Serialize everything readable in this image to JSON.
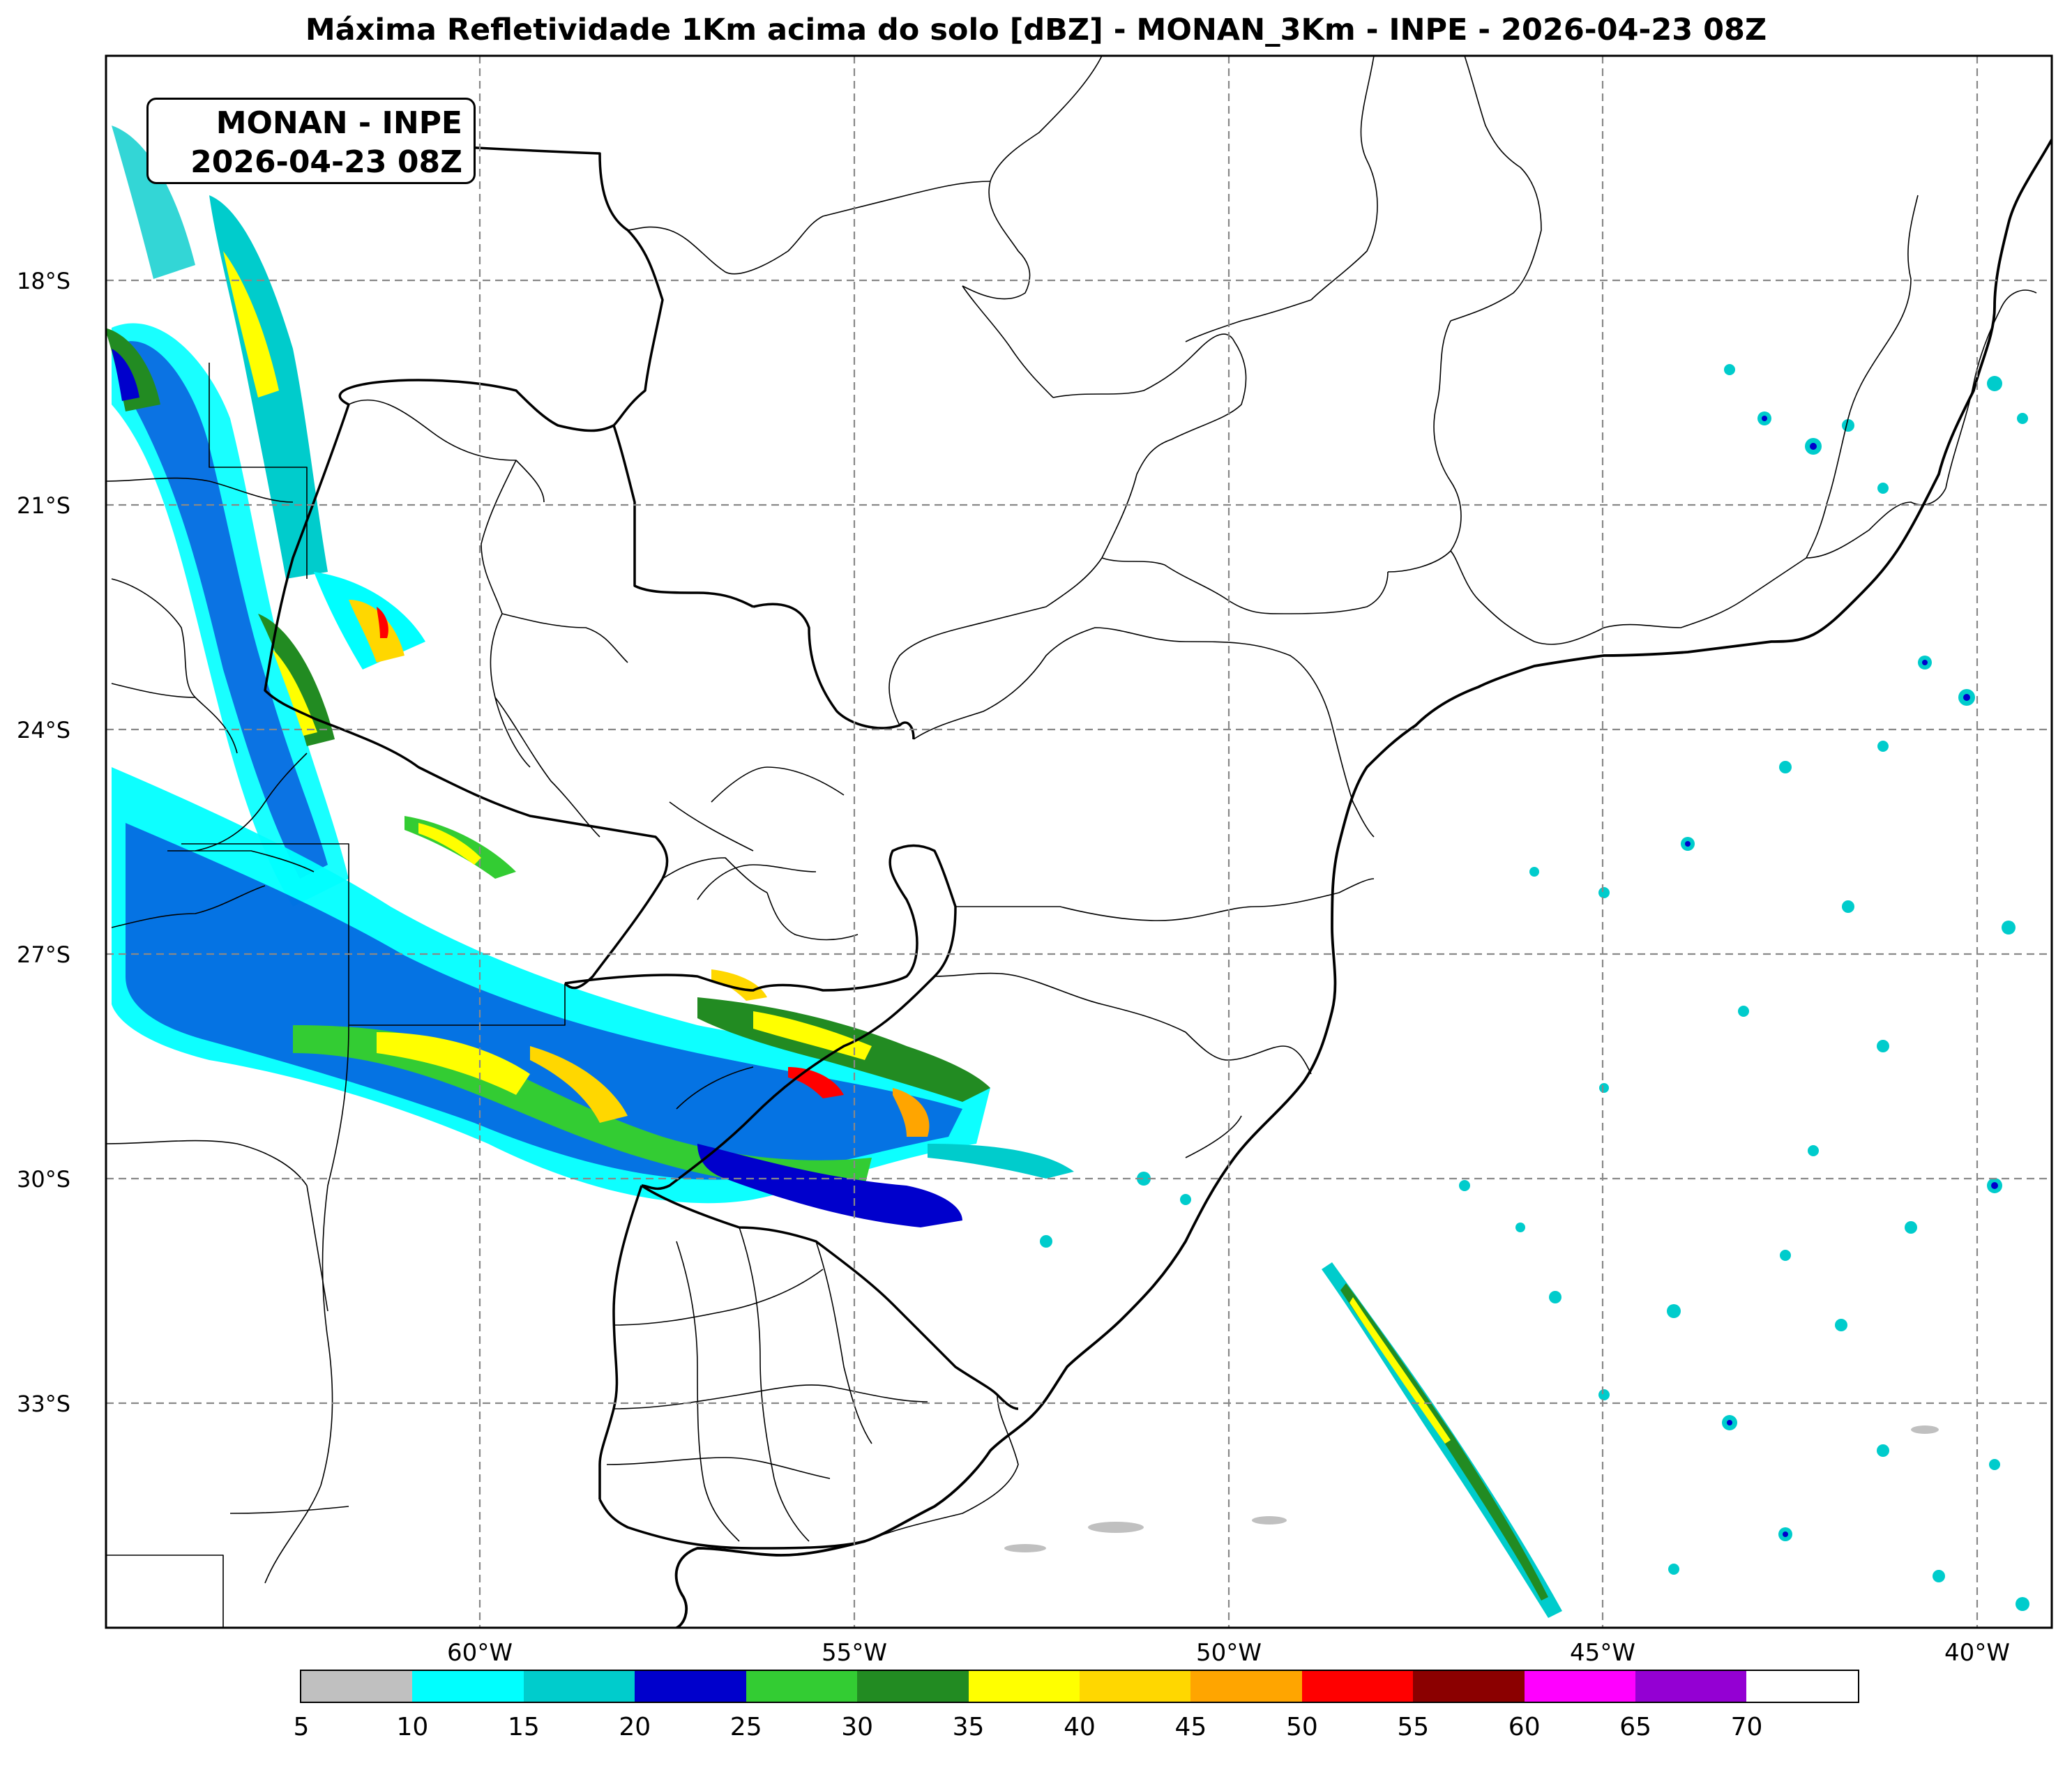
{
  "title": "Máxima Refletividade 1Km acima do solo [dBZ] - MONAN_3Km - INPE - 2026-04-23 08Z",
  "infobox": {
    "line1": "MONAN - INPE",
    "line2": "2026-04-23 08Z"
  },
  "lat_labels": [
    "18°S",
    "21°S",
    "24°S",
    "27°S",
    "30°S",
    "33°S"
  ],
  "lon_labels": [
    "60°W",
    "55°W",
    "50°W",
    "45°W",
    "40°W"
  ],
  "colorbar": {
    "ticks": [
      "5",
      "10",
      "15",
      "20",
      "25",
      "30",
      "35",
      "40",
      "45",
      "50",
      "55",
      "60",
      "65",
      "70"
    ],
    "colors": [
      "#c0c0c0",
      "#00ffff",
      "#00cccc",
      "#0000cc",
      "#33cc33",
      "#228b22",
      "#ffff00",
      "#ffd700",
      "#ffa500",
      "#ff0000",
      "#8b0000",
      "#ff00ff",
      "#9400d3",
      "#ffffff"
    ]
  }
}
